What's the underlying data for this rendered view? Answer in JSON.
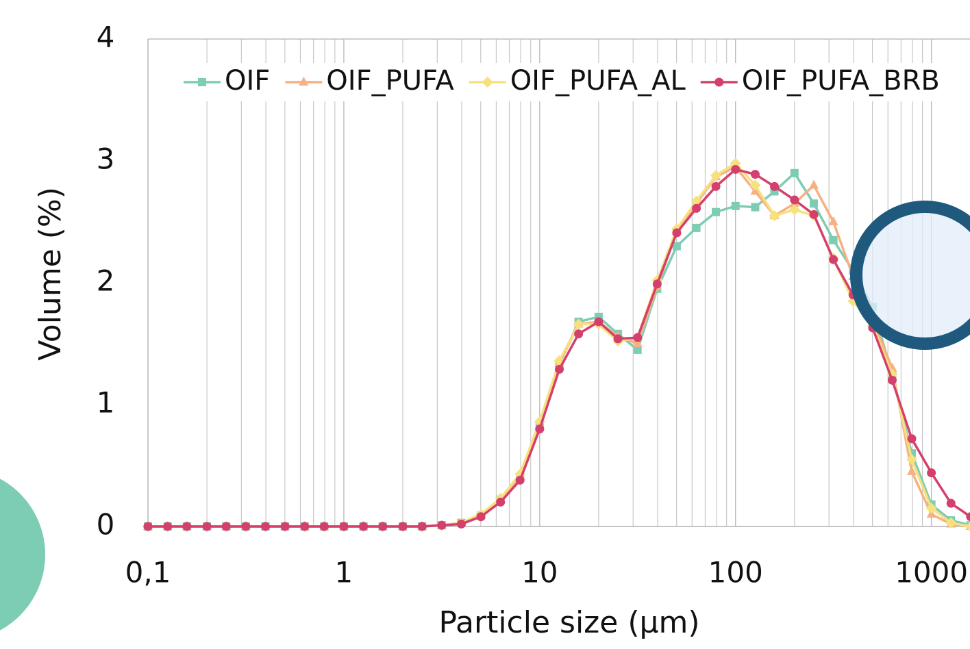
{
  "chart_data": {
    "type": "line",
    "x_label": "Particle size (µm)",
    "y_label": "Volume (%)",
    "x": [
      0.1,
      0.126,
      0.158,
      0.2,
      0.251,
      0.316,
      0.398,
      0.501,
      0.631,
      0.794,
      1,
      1.26,
      1.58,
      2,
      2.51,
      3.16,
      3.98,
      5.01,
      6.31,
      7.94,
      10,
      12.6,
      15.8,
      20,
      25.1,
      31.6,
      39.8,
      50.1,
      63.1,
      79.4,
      100,
      126,
      158,
      200,
      251,
      316,
      398,
      501,
      631,
      794,
      1000,
      1259,
      1585
    ],
    "series": [
      {
        "name": "OIF",
        "color": "#7dccb4",
        "marker": "square",
        "values": [
          0,
          0,
          0,
          0,
          0,
          0,
          0,
          0,
          0,
          0,
          0,
          0,
          0,
          0,
          0,
          0.01,
          0.03,
          0.09,
          0.22,
          0.41,
          0.82,
          1.33,
          1.68,
          1.72,
          1.58,
          1.45,
          1.95,
          2.3,
          2.45,
          2.58,
          2.63,
          2.62,
          2.75,
          2.9,
          2.65,
          2.35,
          2.1,
          1.8,
          1.25,
          0.6,
          0.18,
          0.05,
          0.01
        ]
      },
      {
        "name": "OIF_PUFA",
        "color": "#f5b183",
        "marker": "triangle",
        "values": [
          0,
          0,
          0,
          0,
          0,
          0,
          0,
          0,
          0,
          0,
          0,
          0,
          0,
          0,
          0,
          0.01,
          0.03,
          0.09,
          0.22,
          0.41,
          0.83,
          1.34,
          1.66,
          1.68,
          1.56,
          1.5,
          1.97,
          2.42,
          2.65,
          2.87,
          2.95,
          2.75,
          2.55,
          2.65,
          2.8,
          2.5,
          2.05,
          1.7,
          1.3,
          0.45,
          0.1,
          0.02,
          0
        ]
      },
      {
        "name": "OIF_PUFA_AL",
        "color": "#f7e07e",
        "marker": "diamond",
        "values": [
          0,
          0,
          0,
          0,
          0,
          0,
          0,
          0,
          0,
          0,
          0,
          0,
          0,
          0,
          0,
          0.01,
          0.03,
          0.1,
          0.23,
          0.43,
          0.86,
          1.36,
          1.66,
          1.66,
          1.52,
          1.55,
          2.02,
          2.44,
          2.67,
          2.88,
          2.98,
          2.8,
          2.55,
          2.6,
          2.55,
          2.2,
          1.85,
          1.65,
          1.25,
          0.55,
          0.15,
          0.03,
          0
        ]
      },
      {
        "name": "OIF_PUFA_BRB",
        "color": "#d43f6c",
        "marker": "circle",
        "values": [
          0,
          0,
          0,
          0,
          0,
          0,
          0,
          0,
          0,
          0,
          0,
          0,
          0,
          0,
          0,
          0.01,
          0.02,
          0.08,
          0.2,
          0.38,
          0.8,
          1.29,
          1.58,
          1.68,
          1.54,
          1.55,
          1.99,
          2.41,
          2.61,
          2.79,
          2.93,
          2.89,
          2.79,
          2.68,
          2.56,
          2.19,
          1.9,
          1.63,
          1.2,
          0.72,
          0.44,
          0.19,
          0.08
        ]
      }
    ],
    "xlog": true,
    "xlim": [
      0.1,
      1600
    ],
    "xticks": [
      {
        "value": 0.1,
        "label": "0,1"
      },
      1,
      10,
      100,
      1000
    ],
    "ylim": [
      0,
      4
    ],
    "yticks": [
      0,
      1,
      2,
      3,
      4
    ],
    "grid": "x",
    "legend": "top"
  }
}
